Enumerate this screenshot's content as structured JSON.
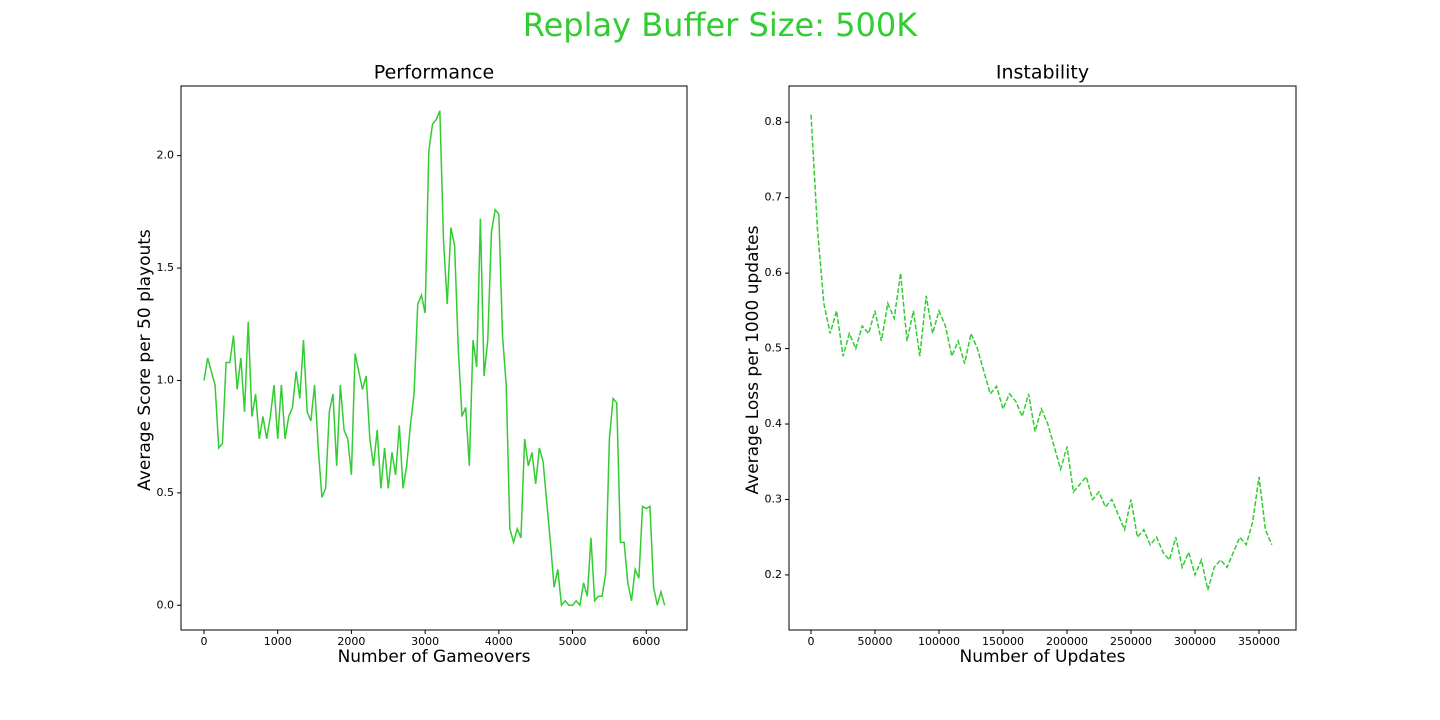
{
  "title": "Replay Buffer Size: 500K",
  "title_color": "#33cc33",
  "chart_data": [
    {
      "type": "line",
      "title": "Performance",
      "x_label": "Number of Gameovers",
      "y_label": "Average Score per 50 playouts",
      "color": "#33cc33",
      "linestyle": "solid",
      "xlim": [
        -312,
        6553
      ],
      "ylim": [
        -0.11,
        2.31
      ],
      "xticks": [
        0,
        1000,
        2000,
        3000,
        4000,
        5000,
        6000
      ],
      "yticks": [
        {
          "value": 0,
          "label": "0.0"
        },
        0.5,
        {
          "value": 1,
          "label": "1.0"
        },
        1.5,
        {
          "value": 2,
          "label": "2.0"
        }
      ],
      "x": [
        0,
        50,
        100,
        150,
        200,
        250,
        300,
        350,
        400,
        450,
        500,
        550,
        600,
        650,
        700,
        750,
        800,
        850,
        900,
        950,
        1000,
        1050,
        1100,
        1150,
        1200,
        1250,
        1300,
        1350,
        1400,
        1450,
        1500,
        1550,
        1600,
        1650,
        1700,
        1750,
        1800,
        1850,
        1900,
        1950,
        2000,
        2050,
        2100,
        2150,
        2200,
        2250,
        2300,
        2350,
        2400,
        2450,
        2500,
        2550,
        2600,
        2650,
        2700,
        2750,
        2800,
        2850,
        2900,
        2950,
        3000,
        3050,
        3100,
        3150,
        3200,
        3250,
        3300,
        3350,
        3400,
        3450,
        3500,
        3550,
        3600,
        3650,
        3700,
        3750,
        3800,
        3850,
        3900,
        3950,
        4000,
        4050,
        4100,
        4150,
        4200,
        4250,
        4300,
        4350,
        4400,
        4450,
        4500,
        4550,
        4600,
        4650,
        4700,
        4750,
        4800,
        4850,
        4900,
        4950,
        5000,
        5050,
        5100,
        5150,
        5200,
        5250,
        5300,
        5350,
        5400,
        5450,
        5500,
        5550,
        5600,
        5650,
        5700,
        5750,
        5800,
        5850,
        5900,
        5950,
        6000,
        6050,
        6100,
        6150,
        6200,
        6250
      ],
      "values": [
        1.0,
        1.1,
        1.04,
        0.98,
        0.7,
        0.72,
        1.08,
        1.08,
        1.2,
        0.96,
        1.1,
        0.86,
        1.26,
        0.84,
        0.94,
        0.74,
        0.84,
        0.74,
        0.84,
        0.98,
        0.74,
        0.98,
        0.74,
        0.84,
        0.88,
        1.04,
        0.92,
        1.18,
        0.86,
        0.82,
        0.98,
        0.7,
        0.48,
        0.52,
        0.86,
        0.94,
        0.62,
        0.98,
        0.78,
        0.74,
        0.58,
        1.12,
        1.04,
        0.96,
        1.02,
        0.74,
        0.62,
        0.78,
        0.52,
        0.7,
        0.52,
        0.68,
        0.58,
        0.8,
        0.52,
        0.62,
        0.8,
        0.94,
        1.34,
        1.38,
        1.3,
        2.02,
        2.14,
        2.16,
        2.2,
        1.62,
        1.34,
        1.68,
        1.6,
        1.14,
        0.84,
        0.88,
        0.62,
        1.18,
        1.06,
        1.72,
        1.02,
        1.18,
        1.66,
        1.76,
        1.74,
        1.2,
        0.98,
        0.34,
        0.28,
        0.34,
        0.3,
        0.74,
        0.62,
        0.68,
        0.54,
        0.7,
        0.64,
        0.46,
        0.28,
        0.08,
        0.16,
        0.0,
        0.02,
        0.0,
        0.0,
        0.02,
        0.0,
        0.1,
        0.04,
        0.3,
        0.02,
        0.04,
        0.04,
        0.14,
        0.74,
        0.92,
        0.9,
        0.28,
        0.28,
        0.1,
        0.02,
        0.16,
        0.12,
        0.44,
        0.43,
        0.44,
        0.08,
        0.0,
        0.06,
        0.0
      ]
    },
    {
      "type": "line",
      "title": "Instability",
      "x_label": "Number of Updates",
      "y_label": "Average Loss per 1000 updates",
      "color": "#33cc33",
      "linestyle": "dashed",
      "xlim": [
        -17190,
        378900
      ],
      "ylim": [
        0.127,
        0.848
      ],
      "xticks": [
        0,
        50000,
        100000,
        150000,
        200000,
        250000,
        300000,
        350000
      ],
      "yticks": [
        0.2,
        0.3,
        0.4,
        0.5,
        0.6,
        0.7,
        0.8
      ],
      "x": [
        0,
        5000,
        10000,
        15000,
        20000,
        25000,
        30000,
        35000,
        40000,
        45000,
        50000,
        55000,
        60000,
        65000,
        70000,
        75000,
        80000,
        85000,
        90000,
        95000,
        100000,
        105000,
        110000,
        115000,
        120000,
        125000,
        130000,
        135000,
        140000,
        145000,
        150000,
        155000,
        160000,
        165000,
        170000,
        175000,
        180000,
        185000,
        190000,
        195000,
        200000,
        205000,
        210000,
        215000,
        220000,
        225000,
        230000,
        235000,
        240000,
        245000,
        250000,
        255000,
        260000,
        265000,
        270000,
        275000,
        280000,
        285000,
        290000,
        295000,
        300000,
        305000,
        310000,
        315000,
        320000,
        325000,
        330000,
        335000,
        340000,
        345000,
        350000,
        355000,
        360000
      ],
      "values": [
        0.81,
        0.66,
        0.56,
        0.52,
        0.55,
        0.49,
        0.52,
        0.5,
        0.53,
        0.52,
        0.55,
        0.51,
        0.56,
        0.54,
        0.6,
        0.51,
        0.55,
        0.49,
        0.57,
        0.52,
        0.55,
        0.53,
        0.49,
        0.51,
        0.48,
        0.52,
        0.5,
        0.47,
        0.44,
        0.45,
        0.42,
        0.44,
        0.43,
        0.41,
        0.44,
        0.39,
        0.42,
        0.4,
        0.37,
        0.34,
        0.37,
        0.31,
        0.32,
        0.33,
        0.3,
        0.31,
        0.29,
        0.3,
        0.28,
        0.26,
        0.3,
        0.25,
        0.26,
        0.24,
        0.25,
        0.23,
        0.22,
        0.25,
        0.21,
        0.23,
        0.2,
        0.22,
        0.18,
        0.21,
        0.22,
        0.21,
        0.23,
        0.25,
        0.24,
        0.27,
        0.33,
        0.26,
        0.24
      ]
    }
  ]
}
